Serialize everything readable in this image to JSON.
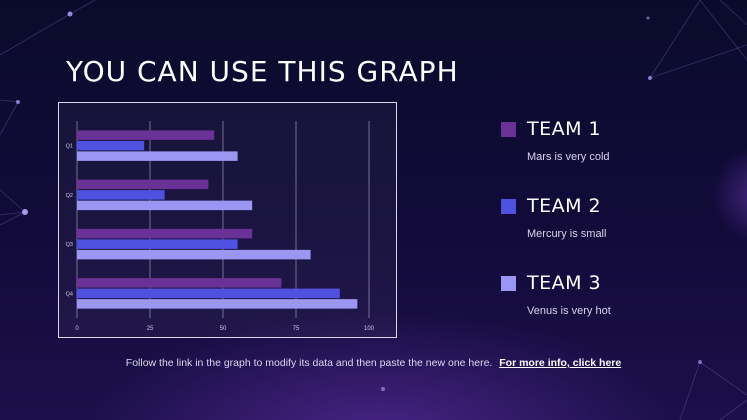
{
  "slide": {
    "title": "YOU CAN USE THIS GRAPH",
    "footer_text": "Follow the link in the graph to modify its data and then paste the new one here.",
    "footer_link": "For more info, click here"
  },
  "legend": [
    {
      "name": "TEAM 1",
      "description": "Mars is very cold",
      "color": "#6a3196"
    },
    {
      "name": "TEAM 2",
      "description": "Mercury is small",
      "color": "#4f52e0"
    },
    {
      "name": "TEAM 3",
      "description": "Venus is very hot",
      "color": "#9a96f2"
    }
  ],
  "chart_data": {
    "type": "bar",
    "orientation": "horizontal",
    "categories": [
      "Q1",
      "Q2",
      "Q3",
      "Q4"
    ],
    "series": [
      {
        "values": [
          47,
          45,
          60,
          70
        ],
        "color": "#6a3196"
      },
      {
        "values": [
          23,
          30,
          55,
          90
        ],
        "color": "#4f52e0"
      },
      {
        "values": [
          55,
          60,
          80,
          96
        ],
        "color": "#9a96f2"
      }
    ],
    "xlim": [
      0,
      100
    ],
    "xticks": [
      "0",
      "25",
      "50",
      "75",
      "100"
    ],
    "grid": true
  }
}
